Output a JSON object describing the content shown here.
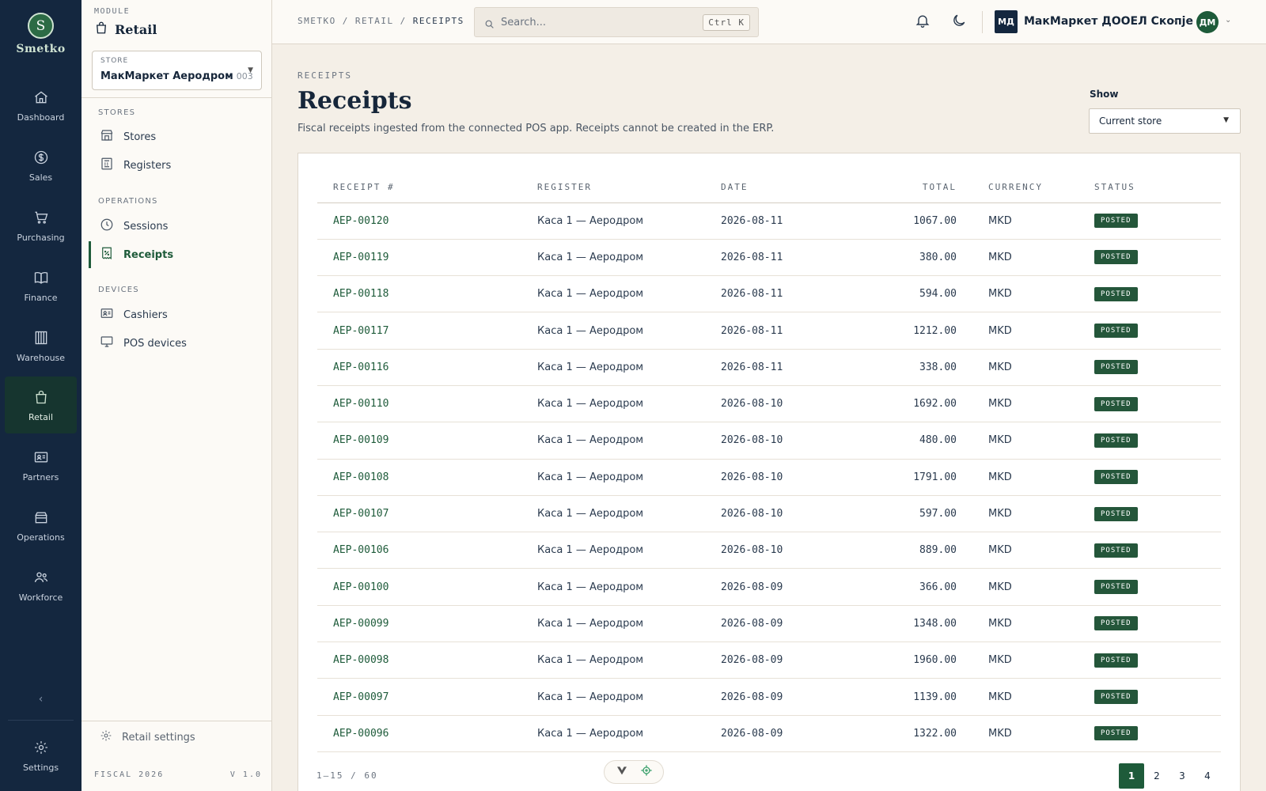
{
  "brand": {
    "logo_letter": "S",
    "name": "Smetko",
    "accent": "#1e5b3a",
    "rail_bg": "#14273f"
  },
  "rail": [
    {
      "label": "Dashboard",
      "icon": "home-icon"
    },
    {
      "label": "Sales",
      "icon": "dollar-icon"
    },
    {
      "label": "Purchasing",
      "icon": "cart-icon"
    },
    {
      "label": "Finance",
      "icon": "book-icon"
    },
    {
      "label": "Warehouse",
      "icon": "warehouse-icon"
    },
    {
      "label": "Retail",
      "icon": "bag-icon",
      "active": true
    },
    {
      "label": "Partners",
      "icon": "id-card-icon"
    },
    {
      "label": "Operations",
      "icon": "box-icon"
    },
    {
      "label": "Workforce",
      "icon": "users-icon"
    }
  ],
  "rail_collapse": "‹",
  "rail_settings": "Settings",
  "module": {
    "caption": "MODULE",
    "title": "Retail"
  },
  "store_select": {
    "label": "STORE",
    "value": "МакМаркет Аеродром",
    "code": "003"
  },
  "subnav": {
    "sections": [
      "STORES",
      "OPERATIONS",
      "DEVICES"
    ],
    "items": [
      "Stores",
      "Registers",
      "Sessions",
      "Receipts",
      "Cashiers",
      "POS devices"
    ],
    "settings": "Retail settings",
    "footer_left": "FISCAL 2026",
    "footer_right": "V 1.0"
  },
  "breadcrumbs": [
    "SMETKO",
    "RETAIL",
    "RECEIPTS"
  ],
  "breadcrumb_sep": "/",
  "search": {
    "placeholder": "Search...",
    "shortcut": "Ctrl K"
  },
  "org": {
    "badge": "МД",
    "name": "МакМаркет ДООЕЛ Скопје"
  },
  "user": {
    "initials": "ДМ"
  },
  "page": {
    "eyebrow": "RECEIPTS",
    "title": "Receipts",
    "description": "Fiscal receipts ingested from the connected POS app. Receipts cannot be created in the ERP.",
    "show_label": "Show",
    "show_value": "Current store"
  },
  "table": {
    "columns": [
      "RECEIPT #",
      "REGISTER",
      "DATE",
      "TOTAL",
      "CURRENCY",
      "STATUS"
    ],
    "rows": [
      {
        "id": "AEP-00120",
        "register": "Каса 1 — Аеродром",
        "date": "2026-08-11",
        "total": "1067.00",
        "currency": "MKD",
        "status": "POSTED"
      },
      {
        "id": "AEP-00119",
        "register": "Каса 1 — Аеродром",
        "date": "2026-08-11",
        "total": "380.00",
        "currency": "MKD",
        "status": "POSTED"
      },
      {
        "id": "AEP-00118",
        "register": "Каса 1 — Аеродром",
        "date": "2026-08-11",
        "total": "594.00",
        "currency": "MKD",
        "status": "POSTED"
      },
      {
        "id": "AEP-00117",
        "register": "Каса 1 — Аеродром",
        "date": "2026-08-11",
        "total": "1212.00",
        "currency": "MKD",
        "status": "POSTED"
      },
      {
        "id": "AEP-00116",
        "register": "Каса 1 — Аеродром",
        "date": "2026-08-11",
        "total": "338.00",
        "currency": "MKD",
        "status": "POSTED"
      },
      {
        "id": "AEP-00110",
        "register": "Каса 1 — Аеродром",
        "date": "2026-08-10",
        "total": "1692.00",
        "currency": "MKD",
        "status": "POSTED"
      },
      {
        "id": "AEP-00109",
        "register": "Каса 1 — Аеродром",
        "date": "2026-08-10",
        "total": "480.00",
        "currency": "MKD",
        "status": "POSTED"
      },
      {
        "id": "AEP-00108",
        "register": "Каса 1 — Аеродром",
        "date": "2026-08-10",
        "total": "1791.00",
        "currency": "MKD",
        "status": "POSTED"
      },
      {
        "id": "AEP-00107",
        "register": "Каса 1 — Аеродром",
        "date": "2026-08-10",
        "total": "597.00",
        "currency": "MKD",
        "status": "POSTED"
      },
      {
        "id": "AEP-00106",
        "register": "Каса 1 — Аеродром",
        "date": "2026-08-10",
        "total": "889.00",
        "currency": "MKD",
        "status": "POSTED"
      },
      {
        "id": "AEP-00100",
        "register": "Каса 1 — Аеродром",
        "date": "2026-08-09",
        "total": "366.00",
        "currency": "MKD",
        "status": "POSTED"
      },
      {
        "id": "AEP-00099",
        "register": "Каса 1 — Аеродром",
        "date": "2026-08-09",
        "total": "1348.00",
        "currency": "MKD",
        "status": "POSTED"
      },
      {
        "id": "AEP-00098",
        "register": "Каса 1 — Аеродром",
        "date": "2026-08-09",
        "total": "1960.00",
        "currency": "MKD",
        "status": "POSTED"
      },
      {
        "id": "AEP-00097",
        "register": "Каса 1 — Аеродром",
        "date": "2026-08-09",
        "total": "1139.00",
        "currency": "MKD",
        "status": "POSTED"
      },
      {
        "id": "AEP-00096",
        "register": "Каса 1 — Аеродром",
        "date": "2026-08-09",
        "total": "1322.00",
        "currency": "MKD",
        "status": "POSTED"
      }
    ]
  },
  "pagination": {
    "range": "1–15 / 60",
    "pages": [
      "1",
      "2",
      "3",
      "4"
    ],
    "current": "1"
  }
}
